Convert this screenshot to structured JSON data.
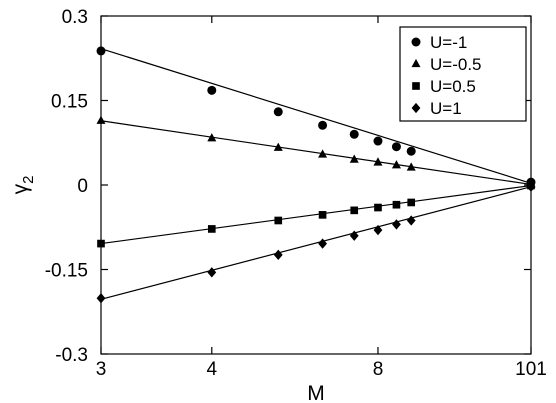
{
  "chart_data": {
    "type": "scatter",
    "title": "",
    "xlabel": "M",
    "ylabel": "γ",
    "ylabel_subscript": "2",
    "x_axis": {
      "scale": "reciprocal",
      "ticks": [
        3,
        4,
        8,
        101
      ],
      "tick_labels": [
        "3",
        "4",
        "8",
        "101"
      ]
    },
    "ylim": [
      -0.3,
      0.3
    ],
    "y_ticks": [
      -0.3,
      -0.15,
      0,
      0.15,
      0.3
    ],
    "y_tick_labels": [
      "-0.3",
      "-0.15",
      "0",
      "0.15",
      "0.3"
    ],
    "grid": false,
    "legend_position": "top-right",
    "series": [
      {
        "name": "U=-1",
        "marker": "circle",
        "x": [
          3,
          4,
          5,
          6,
          7,
          8,
          9,
          10,
          101
        ],
        "y": [
          0.238,
          0.168,
          0.13,
          0.106,
          0.09,
          0.078,
          0.068,
          0.06,
          0.005
        ],
        "fit_line": [
          [
            3,
            0.242
          ],
          [
            101,
            0.003
          ]
        ]
      },
      {
        "name": "U=-0.5",
        "marker": "triangle",
        "x": [
          3,
          4,
          5,
          6,
          7,
          8,
          9,
          10,
          101
        ],
        "y": [
          0.114,
          0.083,
          0.066,
          0.054,
          0.045,
          0.04,
          0.035,
          0.031,
          0.001
        ],
        "fit_line": [
          [
            3,
            0.114
          ],
          [
            101,
            0.001
          ]
        ]
      },
      {
        "name": "U=0.5",
        "marker": "square",
        "x": [
          3,
          4,
          5,
          6,
          7,
          8,
          9,
          10,
          101
        ],
        "y": [
          -0.104,
          -0.078,
          -0.063,
          -0.053,
          -0.045,
          -0.04,
          -0.035,
          -0.031,
          -0.001
        ],
        "fit_line": [
          [
            3,
            -0.104
          ],
          [
            101,
            -0.001
          ]
        ]
      },
      {
        "name": "U=1",
        "marker": "diamond",
        "x": [
          3,
          4,
          5,
          6,
          7,
          8,
          9,
          10,
          101
        ],
        "y": [
          -0.201,
          -0.155,
          -0.124,
          -0.104,
          -0.09,
          -0.08,
          -0.07,
          -0.063,
          -0.003
        ],
        "fit_line": [
          [
            3,
            -0.203
          ],
          [
            101,
            -0.003
          ]
        ]
      }
    ]
  }
}
